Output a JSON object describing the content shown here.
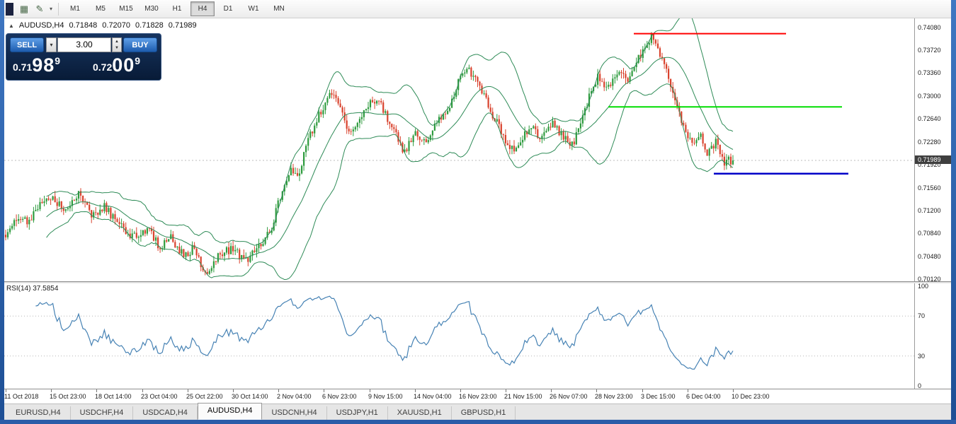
{
  "toolbar": {
    "icons": [
      {
        "name": "charts-grid-icon",
        "glyph": "▦"
      },
      {
        "name": "chart-style-icon",
        "glyph": "✎"
      },
      {
        "name": "dropdown-caret-icon",
        "glyph": "▾"
      }
    ],
    "timeframes": [
      "M1",
      "M5",
      "M15",
      "M30",
      "H1",
      "H4",
      "D1",
      "W1",
      "MN"
    ],
    "selected_timeframe": "H4"
  },
  "chart_caption": {
    "marker": "▲",
    "symbol": "AUDUSD,H4",
    "open": "0.71848",
    "high": "0.72070",
    "low": "0.71828",
    "close": "0.71989"
  },
  "trade_panel": {
    "sell_label": "SELL",
    "buy_label": "BUY",
    "volume": "3.00",
    "caret": "▾",
    "spinner_up": "▲",
    "spinner_down": "▼",
    "sell_price": {
      "head": "0.71",
      "big": "98",
      "sup": "9"
    },
    "buy_price": {
      "head": "0.72",
      "big": "00",
      "sup": "9"
    }
  },
  "price_axis": {
    "labels": [
      "0.74080",
      "0.73720",
      "0.73360",
      "0.73000",
      "0.72640",
      "0.72280",
      "0.71920",
      "0.71560",
      "0.71200",
      "0.70840",
      "0.70480",
      "0.70120"
    ],
    "current_badge": "0.71989"
  },
  "rsi_panel": {
    "label": "RSI(14) 37.5854",
    "scale": [
      "100",
      "70",
      "30",
      "0"
    ]
  },
  "time_axis": {
    "labels": [
      "11 Oct 2018",
      "15 Oct 23:00",
      "18 Oct 14:00",
      "23 Oct 04:00",
      "25 Oct 22:00",
      "30 Oct 14:00",
      "2 Nov 04:00",
      "6 Nov 23:00",
      "9 Nov 15:00",
      "14 Nov 04:00",
      "16 Nov 23:00",
      "21 Nov 15:00",
      "26 Nov 07:00",
      "28 Nov 23:00",
      "3 Dec 15:00",
      "6 Dec 04:00",
      "10 Dec 23:00"
    ]
  },
  "tab_bar": {
    "tabs": [
      "EURUSD,H4",
      "USDCHF,H4",
      "USDCAD,H4",
      "AUDUSD,H4",
      "USDCNH,H4",
      "USDJPY,H1",
      "XAUUSD,H1",
      "GBPUSD,H1"
    ],
    "active": "AUDUSD,H4"
  },
  "chart_data": {
    "type": "candlestick",
    "symbol": "AUDUSD",
    "timeframe": "H4",
    "title": "AUDUSD,H4",
    "ohlc_current": {
      "open": 0.71848,
      "high": 0.7207,
      "low": 0.71828,
      "close": 0.71989
    },
    "y_axis": {
      "min": 0.7009,
      "max": 0.7422,
      "tick_step": 0.0036
    },
    "candle_count": 340,
    "last_close": 0.71989,
    "price_path": [
      [
        0.0,
        0.7082
      ],
      [
        0.012,
        0.7108
      ],
      [
        0.03,
        0.7102
      ],
      [
        0.048,
        0.7132
      ],
      [
        0.065,
        0.7143
      ],
      [
        0.08,
        0.7118
      ],
      [
        0.1,
        0.7148
      ],
      [
        0.118,
        0.7112
      ],
      [
        0.135,
        0.7128
      ],
      [
        0.155,
        0.7098
      ],
      [
        0.175,
        0.708
      ],
      [
        0.195,
        0.7092
      ],
      [
        0.212,
        0.7062
      ],
      [
        0.228,
        0.7078
      ],
      [
        0.245,
        0.7048
      ],
      [
        0.258,
        0.7062
      ],
      [
        0.27,
        0.7032
      ],
      [
        0.278,
        0.7018
      ],
      [
        0.292,
        0.7052
      ],
      [
        0.312,
        0.706
      ],
      [
        0.33,
        0.7042
      ],
      [
        0.35,
        0.7065
      ],
      [
        0.365,
        0.7092
      ],
      [
        0.38,
        0.7152
      ],
      [
        0.392,
        0.7188
      ],
      [
        0.402,
        0.7172
      ],
      [
        0.418,
        0.7238
      ],
      [
        0.432,
        0.7272
      ],
      [
        0.446,
        0.7302
      ],
      [
        0.458,
        0.7288
      ],
      [
        0.472,
        0.7238
      ],
      [
        0.487,
        0.7262
      ],
      [
        0.503,
        0.7295
      ],
      [
        0.518,
        0.7282
      ],
      [
        0.532,
        0.7248
      ],
      [
        0.548,
        0.721
      ],
      [
        0.562,
        0.7242
      ],
      [
        0.578,
        0.7225
      ],
      [
        0.595,
        0.7262
      ],
      [
        0.61,
        0.7285
      ],
      [
        0.625,
        0.733
      ],
      [
        0.636,
        0.7344
      ],
      [
        0.65,
        0.7318
      ],
      [
        0.665,
        0.728
      ],
      [
        0.68,
        0.7248
      ],
      [
        0.695,
        0.7215
      ],
      [
        0.708,
        0.7228
      ],
      [
        0.722,
        0.7252
      ],
      [
        0.737,
        0.7232
      ],
      [
        0.752,
        0.7258
      ],
      [
        0.766,
        0.7238
      ],
      [
        0.78,
        0.7225
      ],
      [
        0.792,
        0.7262
      ],
      [
        0.803,
        0.7302
      ],
      [
        0.815,
        0.733
      ],
      [
        0.828,
        0.7312
      ],
      [
        0.842,
        0.7335
      ],
      [
        0.856,
        0.7322
      ],
      [
        0.87,
        0.7358
      ],
      [
        0.888,
        0.7392
      ],
      [
        0.9,
        0.7368
      ],
      [
        0.912,
        0.7325
      ],
      [
        0.922,
        0.7285
      ],
      [
        0.933,
        0.7252
      ],
      [
        0.944,
        0.7222
      ],
      [
        0.955,
        0.7242
      ],
      [
        0.965,
        0.7212
      ],
      [
        0.976,
        0.7228
      ],
      [
        0.986,
        0.7196
      ],
      [
        1.0,
        0.7199
      ]
    ],
    "indicators": {
      "bollinger": {
        "period": 20,
        "deviation": 2,
        "color": "#2E8B57"
      },
      "rsi": {
        "period": 14,
        "value": 37.5854,
        "levels": [
          100,
          70,
          30,
          0
        ],
        "color": "#4682B4"
      }
    },
    "hlines": [
      {
        "name": "resistance-line-red",
        "price": 0.7398,
        "color": "#FF0000",
        "x1": 0.692,
        "x2": 0.859,
        "width": 2
      },
      {
        "name": "mid-level-line-green",
        "price": 0.7283,
        "color": "#00DD00",
        "x1": 0.664,
        "x2": 0.921,
        "width": 2
      },
      {
        "name": "support-line-blue",
        "price": 0.7178,
        "color": "#0000C8",
        "x1": 0.78,
        "x2": 0.928,
        "width": 2.5
      }
    ],
    "bid_line": {
      "price": 0.71989
    },
    "colors": {
      "up": "#2e9b3e",
      "down": "#d9432e",
      "background": "#ffffff"
    }
  }
}
